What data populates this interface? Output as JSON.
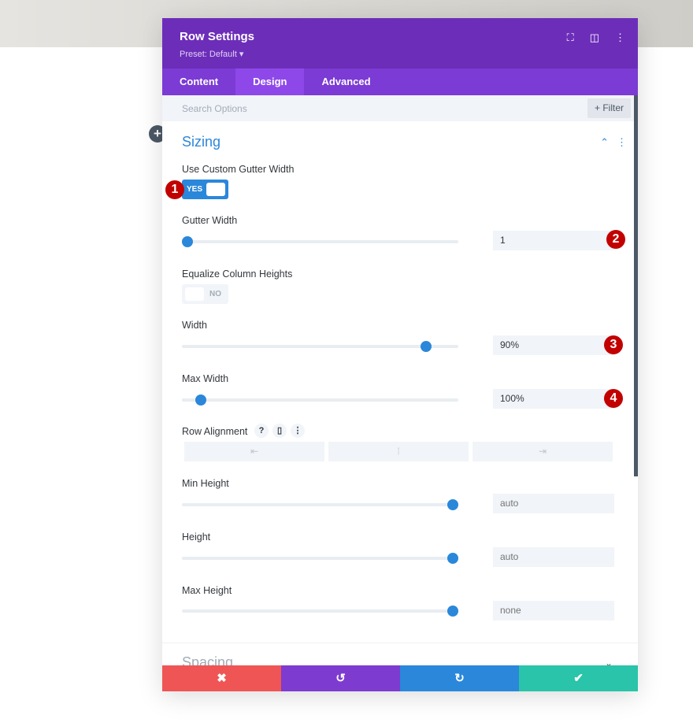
{
  "modal": {
    "title": "Row Settings",
    "preset": "Preset: Default ▾",
    "tabs": [
      {
        "label": "Content"
      },
      {
        "label": "Design",
        "active": true
      },
      {
        "label": "Advanced"
      }
    ],
    "search_placeholder": "Search Options",
    "filter_label": "+ Filter",
    "section": "Sizing",
    "fields": {
      "custom_gutter": {
        "label": "Use Custom Gutter Width",
        "value": "YES"
      },
      "gutter_width": {
        "label": "Gutter Width",
        "value": "1",
        "slider_percent": 0
      },
      "equalize": {
        "label": "Equalize Column Heights",
        "value": "NO"
      },
      "width": {
        "label": "Width",
        "value": "90%",
        "slider_percent": 88
      },
      "max_width": {
        "label": "Max Width",
        "value": "100%",
        "slider_percent": 5
      },
      "row_alignment": {
        "label": "Row Alignment",
        "help": "?",
        "options": [
          "left",
          "center",
          "right"
        ]
      },
      "min_height": {
        "label": "Min Height",
        "placeholder": "auto",
        "slider_percent": 98
      },
      "height": {
        "label": "Height",
        "placeholder": "auto",
        "slider_percent": 98
      },
      "max_height": {
        "label": "Max Height",
        "placeholder": "none",
        "slider_percent": 98
      }
    },
    "next_section": "Spacing",
    "footer": {
      "cancel": "✖",
      "undo": "↺",
      "redo": "↻",
      "save": "✔"
    }
  },
  "annotations": [
    "1",
    "2",
    "3",
    "4"
  ],
  "colors": {
    "header": "#6c2eb9",
    "tabs": "#7b3bd4",
    "accent": "#2b87da",
    "cancel": "#ef5555",
    "undo": "#7e3bd0",
    "redo": "#2b87da",
    "save": "#29c4a9",
    "badge": "#c20000"
  }
}
